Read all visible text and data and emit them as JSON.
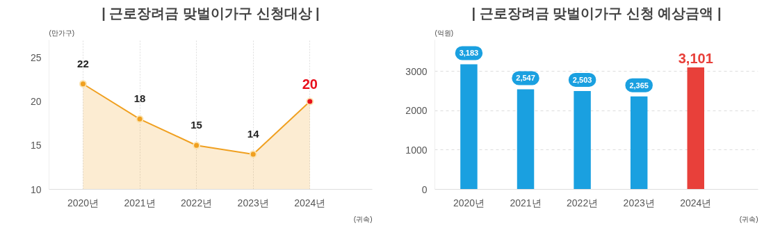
{
  "chart_data": [
    {
      "type": "area",
      "title": "| 근로장려금 맞벌이가구 신청대상 |",
      "ylabel": "(만가구)",
      "xlabel": "(귀속)",
      "categories": [
        "2020년",
        "2021년",
        "2022년",
        "2023년",
        "2024년"
      ],
      "values": [
        22,
        18,
        15,
        14,
        20
      ],
      "color": "#f0a020",
      "colors": [
        "#f0a020",
        "#f0a020",
        "#f0a020",
        "#f0a020",
        "#e8101c"
      ],
      "ylim": [
        10,
        27
      ],
      "yticks": [
        10,
        15,
        20,
        25
      ],
      "grid": "x",
      "marker": "circle",
      "data_labels": true
    },
    {
      "type": "bar",
      "title": "| 근로장려금 맞벌이가구 신청 예상금액 |",
      "ylabel": "(억원)",
      "xlabel": "(귀속)",
      "categories": [
        "2020년",
        "2021년",
        "2022년",
        "2023년",
        "2024년"
      ],
      "values": [
        3183,
        2547,
        2503,
        2365,
        3101
      ],
      "colors": [
        "#1aa0e0",
        "#1aa0e0",
        "#1aa0e0",
        "#1aa0e0",
        "#e8403a"
      ],
      "ylim": [
        0,
        3800
      ],
      "yticks": [
        0,
        1000,
        2000,
        3000
      ],
      "grid": "y",
      "value_labels": [
        "3,183",
        "2,547",
        "2,503",
        "2,365",
        "3,101"
      ]
    }
  ]
}
